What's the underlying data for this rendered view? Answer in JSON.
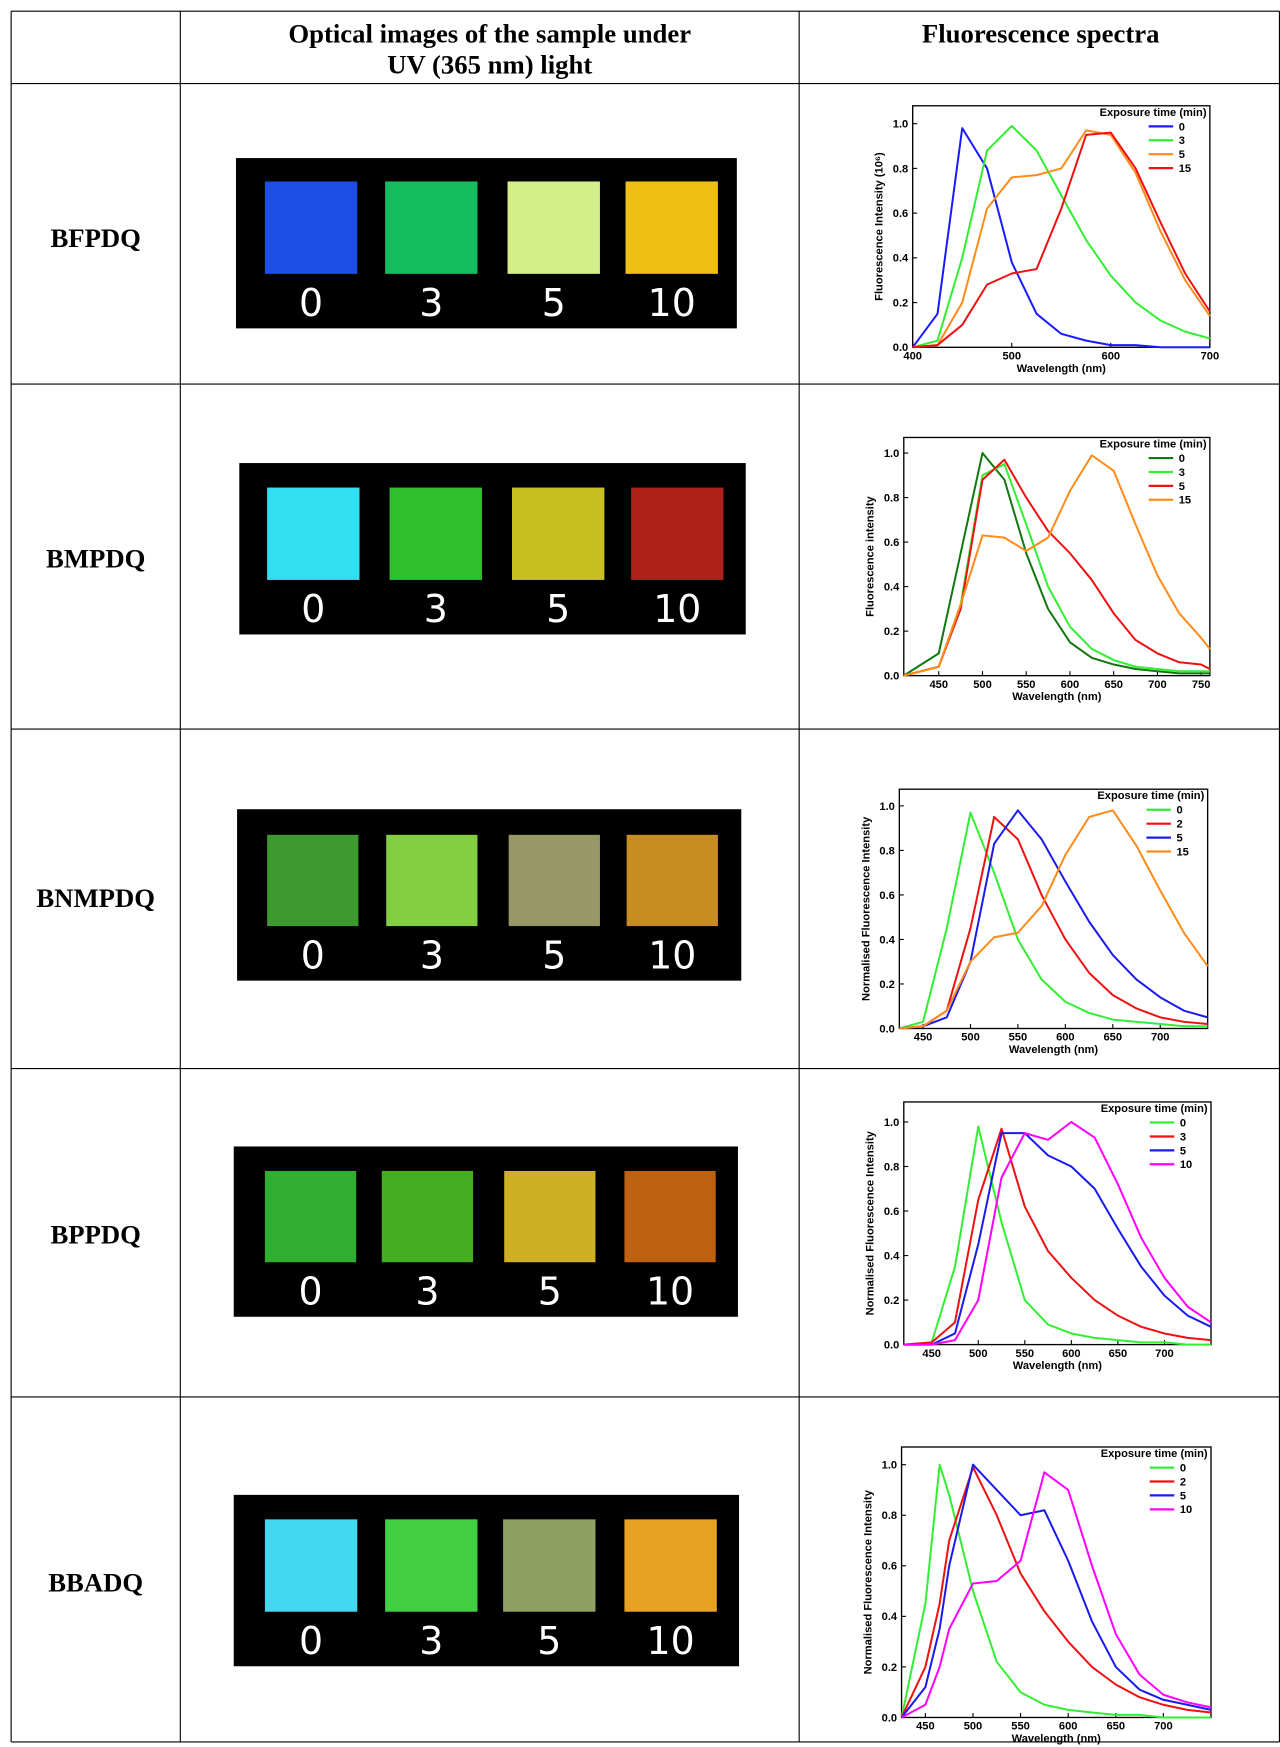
{
  "table": {
    "header": {
      "optical": [
        "Optical images of the sample under",
        "UV (365 nm) light"
      ],
      "spectra": "Fluorescence spectra"
    },
    "rows": [
      {
        "name": "BFPDQ",
        "swatches": [
          {
            "label": "0",
            "color": "#1c4fe6"
          },
          {
            "label": "3",
            "color": "#14bd5e"
          },
          {
            "label": "5",
            "color": "#d4ef8a"
          },
          {
            "label": "10",
            "color": "#efbf16"
          }
        ]
      },
      {
        "name": "BMPDQ",
        "swatches": [
          {
            "label": "0",
            "color": "#30dff0"
          },
          {
            "label": "3",
            "color": "#2fbe2c"
          },
          {
            "label": "5",
            "color": "#c6c022"
          },
          {
            "label": "10",
            "color": "#ae2018"
          }
        ]
      },
      {
        "name": "BNMPDQ",
        "swatches": [
          {
            "label": "0",
            "color": "#3c9a30"
          },
          {
            "label": "3",
            "color": "#82cf42"
          },
          {
            "label": "5",
            "color": "#989866"
          },
          {
            "label": "10",
            "color": "#c68e22"
          }
        ]
      },
      {
        "name": "BPPDQ",
        "swatches": [
          {
            "label": "0",
            "color": "#2fae2f"
          },
          {
            "label": "3",
            "color": "#42ae20"
          },
          {
            "label": "5",
            "color": "#cfb024"
          },
          {
            "label": "10",
            "color": "#be6212"
          }
        ]
      },
      {
        "name": "BBADQ",
        "swatches": [
          {
            "label": "0",
            "color": "#42d8ef"
          },
          {
            "label": "3",
            "color": "#42cf42"
          },
          {
            "label": "5",
            "color": "#90a062"
          },
          {
            "label": "10",
            "color": "#e7a224"
          }
        ]
      }
    ]
  },
  "chart_data": [
    {
      "type": "line",
      "y_label": "Fluorescence Intensity (10⁶)",
      "x_label": "Wavelength (nm)",
      "legend_title": "Exposure time (min)",
      "legend": "upper right",
      "xlim": [
        400,
        700
      ],
      "xticks": [
        400,
        500,
        600,
        700
      ],
      "ylim": [
        0,
        1.08
      ],
      "yticks": [
        {
          "value": 0,
          "label": "0.0"
        },
        0.2,
        0.4,
        0.6,
        0.8,
        {
          "value": 1,
          "label": "1.0"
        }
      ],
      "x": [
        400,
        425,
        450,
        475,
        500,
        525,
        550,
        575,
        600,
        625,
        650,
        675,
        700
      ],
      "series": [
        {
          "name": "0",
          "color": "#1a1aff",
          "values": [
            0,
            0.15,
            0.98,
            0.8,
            0.38,
            0.15,
            0.06,
            0.03,
            0.01,
            0.01,
            0,
            0,
            0
          ]
        },
        {
          "name": "3",
          "color": "#33ee33",
          "values": [
            0,
            0.03,
            0.4,
            0.88,
            0.99,
            0.88,
            0.68,
            0.48,
            0.32,
            0.2,
            0.12,
            0.07,
            0.04
          ]
        },
        {
          "name": "5",
          "color": "#ff8c1a",
          "values": [
            0,
            0.01,
            0.2,
            0.62,
            0.76,
            0.77,
            0.8,
            0.97,
            0.95,
            0.78,
            0.52,
            0.3,
            0.14
          ]
        },
        {
          "name": "15",
          "color": "#ee1111",
          "values": [
            0,
            0.01,
            0.1,
            0.28,
            0.33,
            0.35,
            0.62,
            0.95,
            0.96,
            0.8,
            0.56,
            0.33,
            0.16
          ]
        }
      ]
    },
    {
      "type": "line",
      "y_label": "Fluorescence intensity",
      "x_label": "Wavelength (nm)",
      "legend_title": "Exposure time (min)",
      "legend": "upper right",
      "xlim": [
        410,
        760
      ],
      "xticks": [
        450,
        500,
        550,
        600,
        650,
        700,
        750
      ],
      "ylim": [
        0,
        1.07
      ],
      "yticks": [
        {
          "value": 0,
          "label": "0.0"
        },
        0.2,
        0.4,
        0.6,
        0.8,
        {
          "value": 1,
          "label": "1.0"
        }
      ],
      "x": [
        410,
        450,
        475,
        500,
        525,
        550,
        575,
        600,
        625,
        650,
        675,
        700,
        725,
        750,
        760
      ],
      "series": [
        {
          "name": "0",
          "color": "#117711",
          "values": [
            0,
            0.1,
            0.55,
            1.0,
            0.88,
            0.55,
            0.3,
            0.15,
            0.08,
            0.05,
            0.03,
            0.02,
            0.01,
            0.01,
            0.01
          ]
        },
        {
          "name": "3",
          "color": "#33ee33",
          "values": [
            0,
            0.04,
            0.32,
            0.9,
            0.95,
            0.68,
            0.4,
            0.22,
            0.12,
            0.07,
            0.04,
            0.03,
            0.02,
            0.02,
            0.02
          ]
        },
        {
          "name": "5",
          "color": "#ee1111",
          "values": [
            0,
            0.04,
            0.3,
            0.88,
            0.97,
            0.8,
            0.65,
            0.55,
            0.43,
            0.28,
            0.16,
            0.1,
            0.06,
            0.05,
            0.03
          ]
        },
        {
          "name": "15",
          "color": "#ff8c1a",
          "values": [
            0,
            0.04,
            0.32,
            0.63,
            0.62,
            0.56,
            0.62,
            0.83,
            0.99,
            0.92,
            0.68,
            0.45,
            0.28,
            0.17,
            0.12
          ]
        }
      ]
    },
    {
      "type": "line",
      "y_label": "Normalised Fluorescence Intensity",
      "x_label": "Wavelength (nm)",
      "legend_title": "Exposure time (min)",
      "legend": "upper right",
      "xlim": [
        425,
        750
      ],
      "xticks": [
        450,
        500,
        550,
        600,
        650,
        700
      ],
      "ylim": [
        0,
        1.075
      ],
      "yticks": [
        {
          "value": 0,
          "label": "0.0"
        },
        0.2,
        0.4,
        0.6,
        0.8,
        {
          "value": 1,
          "label": "1.0"
        }
      ],
      "x": [
        425,
        450,
        475,
        500,
        525,
        550,
        575,
        600,
        625,
        650,
        675,
        700,
        725,
        750
      ],
      "series": [
        {
          "name": "0",
          "color": "#33ee33",
          "values": [
            0,
            0.03,
            0.45,
            0.97,
            0.7,
            0.4,
            0.22,
            0.12,
            0.07,
            0.04,
            0.03,
            0.02,
            0.01,
            0.01
          ]
        },
        {
          "name": "2",
          "color": "#ee1111",
          "values": [
            0,
            0.01,
            0.08,
            0.45,
            0.95,
            0.85,
            0.6,
            0.4,
            0.25,
            0.15,
            0.09,
            0.05,
            0.03,
            0.02
          ]
        },
        {
          "name": "5",
          "color": "#1a1aee",
          "values": [
            0,
            0.01,
            0.05,
            0.3,
            0.83,
            0.98,
            0.85,
            0.66,
            0.48,
            0.33,
            0.22,
            0.14,
            0.08,
            0.05
          ]
        },
        {
          "name": "15",
          "color": "#ff8c1a",
          "values": [
            0,
            0.01,
            0.08,
            0.3,
            0.41,
            0.43,
            0.55,
            0.78,
            0.95,
            0.98,
            0.82,
            0.62,
            0.43,
            0.28
          ]
        }
      ]
    },
    {
      "type": "line",
      "y_label": "Normalised Fluorescence Intensity",
      "x_label": "Wavelength (nm)",
      "legend_title": "Exposure time (min)",
      "legend": "upper right",
      "xlim": [
        420,
        750
      ],
      "xticks": [
        450,
        500,
        550,
        600,
        650,
        700
      ],
      "ylim": [
        0,
        1.09
      ],
      "yticks": [
        {
          "value": 0,
          "label": "0.0"
        },
        0.2,
        0.4,
        0.6,
        0.8,
        {
          "value": 1,
          "label": "1.0"
        }
      ],
      "x": [
        420,
        450,
        475,
        500,
        525,
        550,
        575,
        600,
        625,
        650,
        675,
        700,
        725,
        750
      ],
      "series": [
        {
          "name": "0",
          "color": "#33ee33",
          "values": [
            0,
            0.01,
            0.35,
            0.98,
            0.55,
            0.2,
            0.09,
            0.05,
            0.03,
            0.02,
            0.01,
            0.01,
            0,
            0
          ]
        },
        {
          "name": "3",
          "color": "#ee1111",
          "values": [
            0,
            0.01,
            0.1,
            0.65,
            0.97,
            0.62,
            0.42,
            0.3,
            0.2,
            0.13,
            0.08,
            0.05,
            0.03,
            0.02
          ]
        },
        {
          "name": "5",
          "color": "#1a1aee",
          "values": [
            0,
            0,
            0.05,
            0.45,
            0.95,
            0.95,
            0.85,
            0.8,
            0.7,
            0.52,
            0.35,
            0.22,
            0.13,
            0.08
          ]
        },
        {
          "name": "10",
          "color": "#ff00ff",
          "values": [
            0,
            0,
            0.02,
            0.2,
            0.75,
            0.95,
            0.92,
            1.0,
            0.93,
            0.72,
            0.48,
            0.3,
            0.17,
            0.1
          ]
        }
      ]
    },
    {
      "type": "line",
      "y_label": "Normalised Fluorescence Intensity",
      "x_label": "Wavelength (nm)",
      "legend_title": "Exposure time (min)",
      "legend": "upper right",
      "xlim": [
        425,
        750
      ],
      "xticks": [
        450,
        500,
        550,
        600,
        650,
        700
      ],
      "ylim": [
        0,
        1.07
      ],
      "yticks": [
        {
          "value": 0,
          "label": "0.0"
        },
        0.2,
        0.4,
        0.6,
        0.8,
        {
          "value": 1,
          "label": "1.0"
        }
      ],
      "x": [
        425,
        450,
        465,
        475,
        500,
        525,
        550,
        575,
        600,
        625,
        650,
        675,
        700,
        725,
        750
      ],
      "series": [
        {
          "name": "0",
          "color": "#33ee33",
          "values": [
            0,
            0.45,
            1.0,
            0.88,
            0.5,
            0.22,
            0.1,
            0.05,
            0.03,
            0.02,
            0.01,
            0.01,
            0,
            0,
            0
          ]
        },
        {
          "name": "2",
          "color": "#ee1111",
          "values": [
            0,
            0.2,
            0.45,
            0.7,
            0.99,
            0.8,
            0.57,
            0.42,
            0.3,
            0.2,
            0.13,
            0.08,
            0.05,
            0.03,
            0.02
          ]
        },
        {
          "name": "5",
          "color": "#1a1aee",
          "values": [
            0,
            0.12,
            0.35,
            0.6,
            1.0,
            0.9,
            0.8,
            0.82,
            0.62,
            0.38,
            0.2,
            0.11,
            0.07,
            0.05,
            0.03
          ]
        },
        {
          "name": "10",
          "color": "#ff00ff",
          "values": [
            0,
            0.05,
            0.2,
            0.35,
            0.53,
            0.54,
            0.62,
            0.97,
            0.9,
            0.6,
            0.33,
            0.17,
            0.09,
            0.06,
            0.04
          ]
        }
      ]
    }
  ]
}
